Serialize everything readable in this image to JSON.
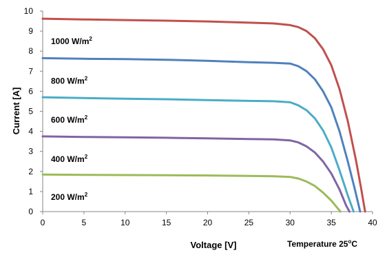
{
  "chart_data": {
    "type": "line",
    "xlabel": "Voltage [V]",
    "ylabel": "Current [A]",
    "xlim": [
      0,
      40
    ],
    "ylim": [
      0,
      10
    ],
    "x_ticks": [
      "0",
      "5",
      "10",
      "15",
      "20",
      "25",
      "30",
      "35",
      "40"
    ],
    "y_ticks": [
      "0",
      "1",
      "2",
      "3",
      "4",
      "5",
      "6",
      "7",
      "8",
      "9",
      "10"
    ],
    "grid": false,
    "annotation": "Temperature 25",
    "annotation_sup": "o",
    "annotation_unit": "C",
    "series": [
      {
        "name": "1000 W/m",
        "name_sup": "2",
        "color": "#C0504D",
        "points": [
          [
            0,
            9.62
          ],
          [
            5,
            9.58
          ],
          [
            10,
            9.55
          ],
          [
            15,
            9.52
          ],
          [
            20,
            9.48
          ],
          [
            25,
            9.42
          ],
          [
            28,
            9.38
          ],
          [
            30,
            9.3
          ],
          [
            31,
            9.2
          ],
          [
            32,
            9.0
          ],
          [
            33,
            8.65
          ],
          [
            34,
            8.1
          ],
          [
            35,
            7.3
          ],
          [
            36,
            6.1
          ],
          [
            37,
            4.5
          ],
          [
            38,
            2.55
          ],
          [
            38.6,
            1.2
          ],
          [
            39.1,
            0
          ]
        ]
      },
      {
        "name": "800 W/m",
        "name_sup": "2",
        "color": "#4F81BD",
        "points": [
          [
            0,
            7.65
          ],
          [
            5,
            7.62
          ],
          [
            10,
            7.6
          ],
          [
            15,
            7.57
          ],
          [
            20,
            7.52
          ],
          [
            25,
            7.45
          ],
          [
            28,
            7.42
          ],
          [
            30,
            7.38
          ],
          [
            31,
            7.25
          ],
          [
            32,
            7.0
          ],
          [
            33,
            6.6
          ],
          [
            34,
            6.0
          ],
          [
            35,
            5.2
          ],
          [
            36,
            4.0
          ],
          [
            37,
            2.5
          ],
          [
            37.8,
            1.2
          ],
          [
            38.5,
            0
          ]
        ]
      },
      {
        "name": "600 W/m",
        "name_sup": "2",
        "color": "#4BACC6",
        "points": [
          [
            0,
            5.7
          ],
          [
            5,
            5.66
          ],
          [
            10,
            5.63
          ],
          [
            15,
            5.6
          ],
          [
            20,
            5.56
          ],
          [
            25,
            5.52
          ],
          [
            28,
            5.5
          ],
          [
            30,
            5.45
          ],
          [
            31,
            5.3
          ],
          [
            32,
            5.05
          ],
          [
            33,
            4.65
          ],
          [
            34,
            4.05
          ],
          [
            35,
            3.2
          ],
          [
            36,
            2.05
          ],
          [
            37,
            0.8
          ],
          [
            37.7,
            0
          ]
        ]
      },
      {
        "name": "400 W/m",
        "name_sup": "2",
        "color": "#8064A2",
        "points": [
          [
            0,
            3.75
          ],
          [
            5,
            3.72
          ],
          [
            10,
            3.7
          ],
          [
            15,
            3.68
          ],
          [
            20,
            3.65
          ],
          [
            25,
            3.62
          ],
          [
            28,
            3.6
          ],
          [
            30,
            3.55
          ],
          [
            31,
            3.45
          ],
          [
            32,
            3.25
          ],
          [
            33,
            2.95
          ],
          [
            34,
            2.5
          ],
          [
            35,
            1.9
          ],
          [
            36,
            1.1
          ],
          [
            36.8,
            0.3
          ],
          [
            37.2,
            0
          ]
        ]
      },
      {
        "name": "200 W/m",
        "name_sup": "2",
        "color": "#9BBB59",
        "points": [
          [
            0,
            1.85
          ],
          [
            5,
            1.83
          ],
          [
            10,
            1.82
          ],
          [
            15,
            1.81
          ],
          [
            20,
            1.8
          ],
          [
            25,
            1.78
          ],
          [
            28,
            1.76
          ],
          [
            30,
            1.73
          ],
          [
            31,
            1.65
          ],
          [
            32,
            1.5
          ],
          [
            33,
            1.28
          ],
          [
            34,
            0.95
          ],
          [
            35,
            0.55
          ],
          [
            35.6,
            0.25
          ],
          [
            36.1,
            0
          ]
        ]
      }
    ]
  }
}
